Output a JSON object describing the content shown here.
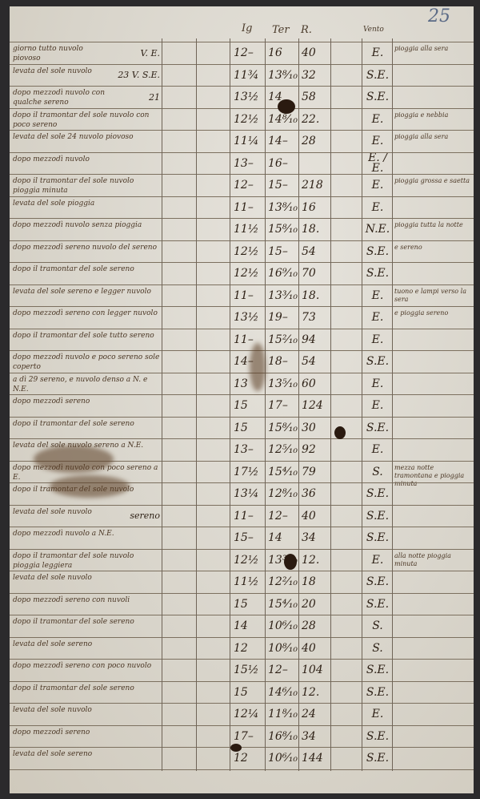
{
  "page_number": "25",
  "headers": {
    "barometer": "Ig",
    "thermometer": "Ter",
    "thermometer_r": "R.",
    "wind": "Vento"
  },
  "rows": [
    {
      "note": "giorno tutto nuvolo piovoso",
      "side": "V. E.",
      "bar": "12–",
      "th": "16",
      "ter": "40",
      "wind": "E.",
      "rem": "pioggia alla sera"
    },
    {
      "note": "levata del sole nuvolo",
      "side": "23 V. S.E.",
      "bar": "11¾",
      "th": "13⁸⁄₁₀",
      "ter": "32",
      "wind": "S.E.",
      "rem": ""
    },
    {
      "note": "dopo mezzodì nuvolo con qualche sereno",
      "side": "21",
      "bar": "13½",
      "th": "14",
      "ter": "58",
      "wind": "S.E.",
      "rem": ""
    },
    {
      "note": "dopo il tramontar del sole nuvolo con poco sereno",
      "side": "",
      "bar": "12½",
      "th": "14⁸⁄₁₀",
      "ter": "22.",
      "wind": "E.",
      "rem": "pioggia e nebbia"
    },
    {
      "note": "levata del sole 24 nuvolo piovoso",
      "side": "",
      "bar": "11¼",
      "th": "14–",
      "ter": "28",
      "wind": "E.",
      "rem": "pioggia alla sera"
    },
    {
      "note": "dopo mezzodì nuvolo",
      "side": "",
      "bar": "13–",
      "th": "16–",
      "ter": "",
      "wind": "E. / E.",
      "rem": ""
    },
    {
      "note": "dopo il tramontar del sole nuvolo pioggia minuta",
      "side": "",
      "bar": "12–",
      "th": "15–",
      "ter": "218",
      "wind": "E.",
      "rem": "pioggia grossa e saetta"
    },
    {
      "note": "levata del sole pioggia",
      "side": "",
      "bar": "11–",
      "th": "13⁸⁄₁₀",
      "ter": "16",
      "wind": "E.",
      "rem": ""
    },
    {
      "note": "dopo mezzodì nuvolo senza pioggia",
      "side": "",
      "bar": "11½",
      "th": "15⁸⁄₁₀",
      "ter": "18.",
      "wind": "N.E.",
      "rem": "pioggia tutta la notte"
    },
    {
      "note": "dopo mezzodì sereno nuvolo del sereno",
      "side": "",
      "bar": "12½",
      "th": "15–",
      "ter": "54",
      "wind": "S.E.",
      "rem": "e sereno"
    },
    {
      "note": "dopo il tramontar del sole sereno",
      "side": "",
      "bar": "12½",
      "th": "16⁹⁄₁₀",
      "ter": "70",
      "wind": "S.E.",
      "rem": ""
    },
    {
      "note": "levata del sole sereno e legger nuvolo",
      "side": "",
      "bar": "11–",
      "th": "13³⁄₁₀",
      "ter": "18.",
      "wind": "E.",
      "rem": "tuono e lampi verso la sera"
    },
    {
      "note": "dopo mezzodì sereno con legger nuvolo",
      "side": "",
      "bar": "13½",
      "th": "19–",
      "ter": "73",
      "wind": "E.",
      "rem": "e pioggia sereno"
    },
    {
      "note": "dopo il tramontar del sole tutto sereno",
      "side": "",
      "bar": "11–",
      "th": "15²⁄₁₀",
      "ter": "94",
      "wind": "E.",
      "rem": ""
    },
    {
      "note": "dopo mezzodì nuvolo e poco sereno sole coperto",
      "side": "",
      "bar": "14–",
      "th": "18–",
      "ter": "54",
      "wind": "S.E.",
      "rem": ""
    },
    {
      "note": "a dì 29 sereno, e nuvolo denso a N. e N.E.",
      "side": "",
      "bar": "13",
      "th": "13⁵⁄₁₀",
      "ter": "60",
      "wind": "E.",
      "rem": ""
    },
    {
      "note": "dopo mezzodì sereno",
      "side": "",
      "bar": "15",
      "th": "17–",
      "ter": "124",
      "wind": "E.",
      "rem": ""
    },
    {
      "note": "dopo il tramontar del sole sereno",
      "side": "",
      "bar": "15",
      "th": "15⁸⁄₁₀",
      "ter": "30",
      "wind": "S.E.",
      "rem": ""
    },
    {
      "note": "levata del sole nuvolo sereno a N.E.",
      "side": "",
      "bar": "13–",
      "th": "12⁵⁄₁₀",
      "ter": "92",
      "wind": "E.",
      "rem": ""
    },
    {
      "note": "dopo mezzodì nuvolo con poco sereno a E.",
      "side": "",
      "bar": "17½",
      "th": "15⁴⁄₁₀",
      "ter": "79",
      "wind": "S.",
      "rem": "mezza notte tramontana e pioggia minuta"
    },
    {
      "note": "dopo il tramontar del sole nuvolo",
      "side": "",
      "bar": "13¼",
      "th": "12⁸⁄₁₀",
      "ter": "36",
      "wind": "S.E.",
      "rem": ""
    },
    {
      "note": "levata del sole nuvolo",
      "side": "sereno",
      "bar": "11–",
      "th": "12–",
      "ter": "40",
      "wind": "S.E.",
      "rem": ""
    },
    {
      "note": "dopo mezzodì nuvolo a N.E.",
      "side": "",
      "bar": "15–",
      "th": "14",
      "ter": "34",
      "wind": "S.E.",
      "rem": ""
    },
    {
      "note": "dopo il tramontar del sole nuvolo pioggia leggiera",
      "side": "",
      "bar": "12½",
      "th": "13³⁄₁₀",
      "ter": "12.",
      "wind": "E.",
      "rem": "alla notte pioggia minuta"
    },
    {
      "note": "levata del sole nuvolo",
      "side": "",
      "bar": "11½",
      "th": "12²⁄₁₀",
      "ter": "18",
      "wind": "S.E.",
      "rem": ""
    },
    {
      "note": "dopo mezzodì sereno con nuvoli",
      "side": "",
      "bar": "15",
      "th": "15⁴⁄₁₀",
      "ter": "20",
      "wind": "S.E.",
      "rem": ""
    },
    {
      "note": "dopo il tramontar del sole sereno",
      "side": "",
      "bar": "14",
      "th": "10⁶⁄₁₀",
      "ter": "28",
      "wind": "S.",
      "rem": ""
    },
    {
      "note": "levata del sole sereno",
      "side": "",
      "bar": "12",
      "th": "10⁸⁄₁₀",
      "ter": "40",
      "wind": "S.",
      "rem": ""
    },
    {
      "note": "dopo mezzodì sereno con poco nuvolo",
      "side": "",
      "bar": "15½",
      "th": "12–",
      "ter": "104",
      "wind": "S.E.",
      "rem": ""
    },
    {
      "note": "dopo il tramontar del sole sereno",
      "side": "",
      "bar": "15",
      "th": "14⁶⁄₁₀",
      "ter": "12.",
      "wind": "S.E.",
      "rem": ""
    },
    {
      "note": "levata del sole nuvolo",
      "side": "",
      "bar": "12¼",
      "th": "11⁸⁄₁₀",
      "ter": "24",
      "wind": "E.",
      "rem": ""
    },
    {
      "note": "dopo mezzodì sereno",
      "side": "",
      "bar": "17–",
      "th": "16⁸⁄₁₀",
      "ter": "34",
      "wind": "S.E.",
      "rem": ""
    },
    {
      "note": "levata del sole sereno",
      "side": "",
      "bar": "12",
      "th": "10⁶⁄₁₀",
      "ter": "144",
      "wind": "S.E.",
      "rem": ""
    }
  ]
}
